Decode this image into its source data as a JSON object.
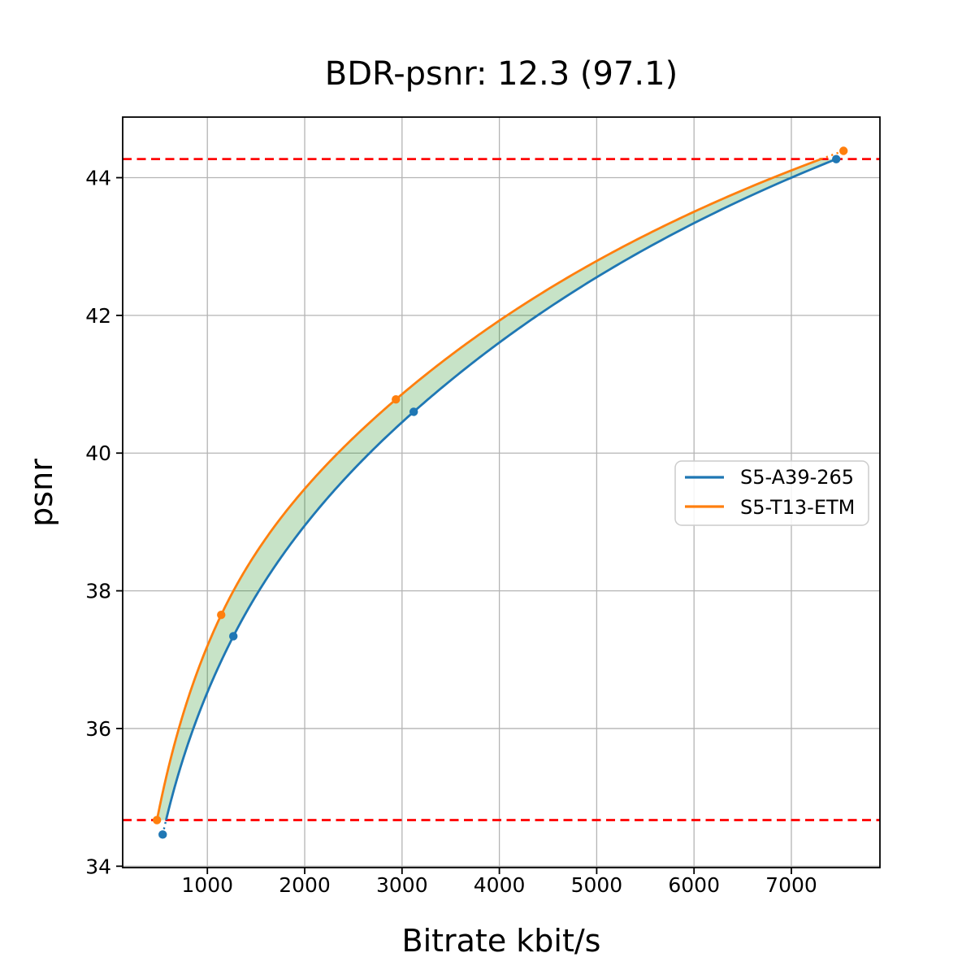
{
  "chart_data": {
    "type": "line",
    "title": "BDR-psnr: 12.3 (97.1)",
    "xlabel": "Bitrate kbit/s",
    "ylabel": "psnr",
    "xlim": [
      130,
      7910
    ],
    "ylim": [
      33.98,
      44.88
    ],
    "xticks": [
      1000,
      2000,
      3000,
      4000,
      5000,
      6000,
      7000
    ],
    "yticks": [
      34,
      36,
      38,
      40,
      42,
      44
    ],
    "grid": true,
    "curve_style": "smooth-monotone-interpolation",
    "legend_position": "center-right",
    "series": [
      {
        "name": "S5-A39-265",
        "color": "#1f77b4",
        "x": [
          541,
          1267,
          3120,
          7461
        ],
        "y": [
          34.46,
          37.34,
          40.6,
          44.27
        ]
      },
      {
        "name": "S5-T13-ETM",
        "color": "#ff7f0e",
        "x": [
          482,
          1142,
          2937,
          7536
        ],
        "y": [
          34.67,
          37.65,
          40.78,
          44.39
        ]
      }
    ],
    "overlap_range_lines": {
      "color": "#ff0000",
      "style": "dashed",
      "y_low": 34.67,
      "y_high": 44.27
    },
    "fill_between": {
      "color": "#008000",
      "opacity": 0.22
    }
  }
}
